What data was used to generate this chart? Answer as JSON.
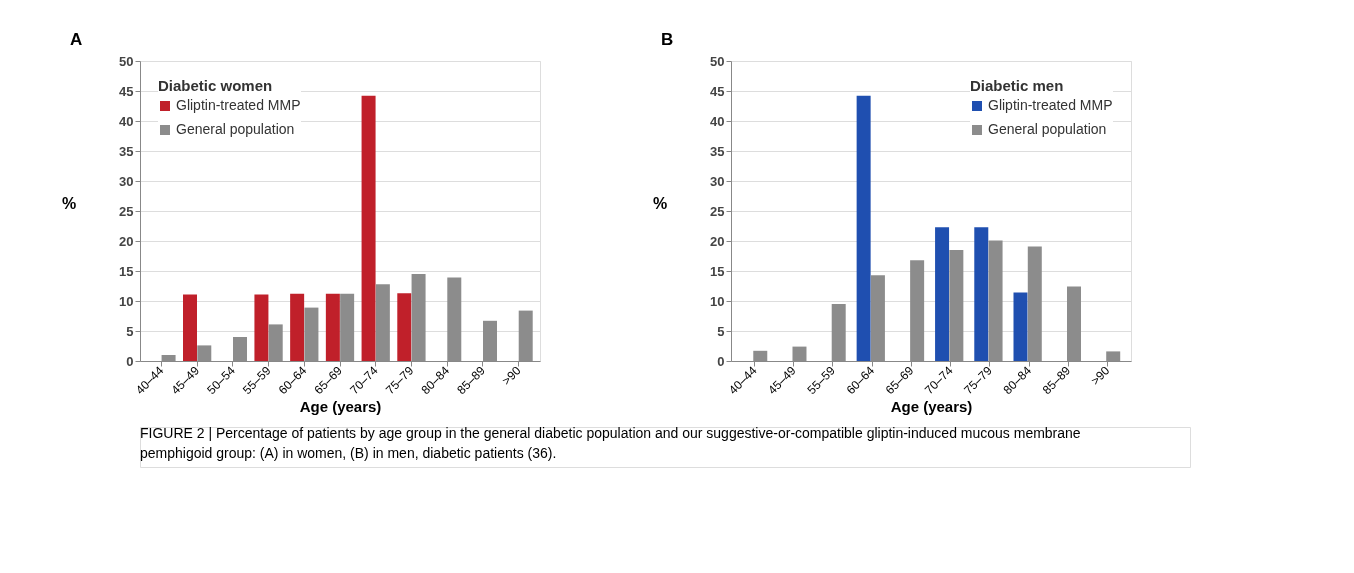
{
  "chart_data": [
    {
      "type": "bar",
      "annotations": [
        "A"
      ],
      "xlabel": "Age (years)",
      "ylabel": "%",
      "legend_title": "Diabetic women",
      "legend": "top left",
      "grid": "y",
      "categories": [
        "40–44",
        "45–49",
        "50–54",
        "55–59",
        "60–64",
        "65–69",
        "70–74",
        "75–79",
        "80–84",
        "85–89",
        ">90"
      ],
      "ylim": [
        0,
        50
      ],
      "yticks": [
        0,
        5,
        10,
        15,
        20,
        25,
        30,
        35,
        40,
        45,
        50
      ],
      "series": [
        {
          "name": "Gliptin-treated MMP",
          "color": "#c0202a",
          "values": [
            null,
            11.1,
            null,
            11.1,
            11.2,
            11.2,
            44.2,
            11.3,
            null,
            null,
            null
          ]
        },
        {
          "name": "General population",
          "color": "#8c8c8c",
          "values": [
            1.0,
            2.6,
            4.0,
            6.1,
            8.9,
            11.2,
            12.8,
            14.5,
            13.9,
            6.7,
            8.4
          ]
        }
      ]
    },
    {
      "type": "bar",
      "annotations": [
        "B",
        "FIGURE 2 | Percentage of patients by age group in the general diabetic population and our suggestive-or-compatible gliptin-induced mucous membrane pemphigoid group: (A) in women, (B) in men, diabetic patients (36)."
      ],
      "xlabel": "Age (years)",
      "ylabel": "%",
      "legend_title": "Diabetic men",
      "legend": "top right",
      "grid": "y",
      "categories": [
        "40–44",
        "45–49",
        "55–59",
        "60–64",
        "65–69",
        "70–74",
        "75–79",
        "80–84",
        "85–89",
        ">90"
      ],
      "ylim": [
        0,
        50
      ],
      "yticks": [
        0,
        5,
        10,
        15,
        20,
        25,
        30,
        35,
        40,
        45,
        50
      ],
      "series": [
        {
          "name": "Gliptin-treated MMP",
          "color": "#1f4fb0",
          "values": [
            null,
            null,
            null,
            44.2,
            null,
            22.3,
            22.3,
            11.4,
            null,
            null
          ]
        },
        {
          "name": "General population",
          "color": "#8c8c8c",
          "values": [
            1.7,
            2.4,
            9.5,
            14.3,
            16.8,
            18.5,
            20.1,
            19.1,
            12.4,
            1.6
          ]
        }
      ]
    }
  ]
}
